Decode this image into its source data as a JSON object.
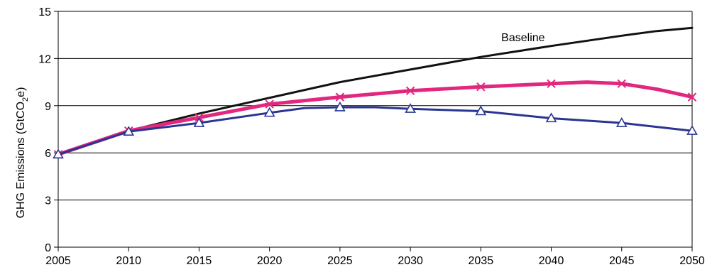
{
  "chart_data": {
    "type": "line",
    "ylabel": "GHG Emissions (GtCO2e)",
    "ylabel_parts": {
      "before": "GHG Emissions (GtCO",
      "sub": "2",
      "after": "e)"
    },
    "xlabel": "",
    "x_ticks": [
      "2005",
      "2010",
      "2015",
      "2020",
      "2025",
      "2030",
      "2035",
      "2040",
      "2045",
      "2050"
    ],
    "y_ticks": [
      "0",
      "3",
      "6",
      "9",
      "12",
      "15"
    ],
    "xlim": [
      2005,
      2050
    ],
    "ylim": [
      0,
      15
    ],
    "grid": "horizontal",
    "legend": "none",
    "annotations": [
      {
        "text": "Baseline",
        "x": 2038,
        "y": 13.1
      }
    ],
    "series": [
      {
        "name": "Baseline",
        "color": "#111111",
        "marker": "none",
        "x": [
          2005,
          2010,
          2015,
          2020,
          2025,
          2030,
          2035,
          2040,
          2045,
          2047.5,
          2050
        ],
        "values": [
          5.9,
          7.4,
          8.5,
          9.5,
          10.5,
          11.3,
          12.1,
          12.8,
          13.45,
          13.75,
          13.95
        ]
      },
      {
        "color": "#e2277f",
        "marker": "x",
        "x": [
          2005,
          2010,
          2015,
          2020,
          2025,
          2030,
          2035,
          2040,
          2042.5,
          2045,
          2047.5,
          2050
        ],
        "values": [
          5.9,
          7.4,
          8.25,
          9.1,
          9.55,
          9.95,
          10.2,
          10.4,
          10.5,
          10.4,
          10.05,
          9.55
        ]
      },
      {
        "color": "#2a3591",
        "marker": "triangle",
        "x": [
          2005,
          2010,
          2015,
          2020,
          2022.5,
          2025,
          2027.5,
          2030,
          2035,
          2040,
          2045,
          2050
        ],
        "values": [
          5.9,
          7.35,
          7.9,
          8.55,
          8.85,
          8.9,
          8.9,
          8.8,
          8.65,
          8.2,
          7.9,
          7.4
        ]
      }
    ]
  }
}
